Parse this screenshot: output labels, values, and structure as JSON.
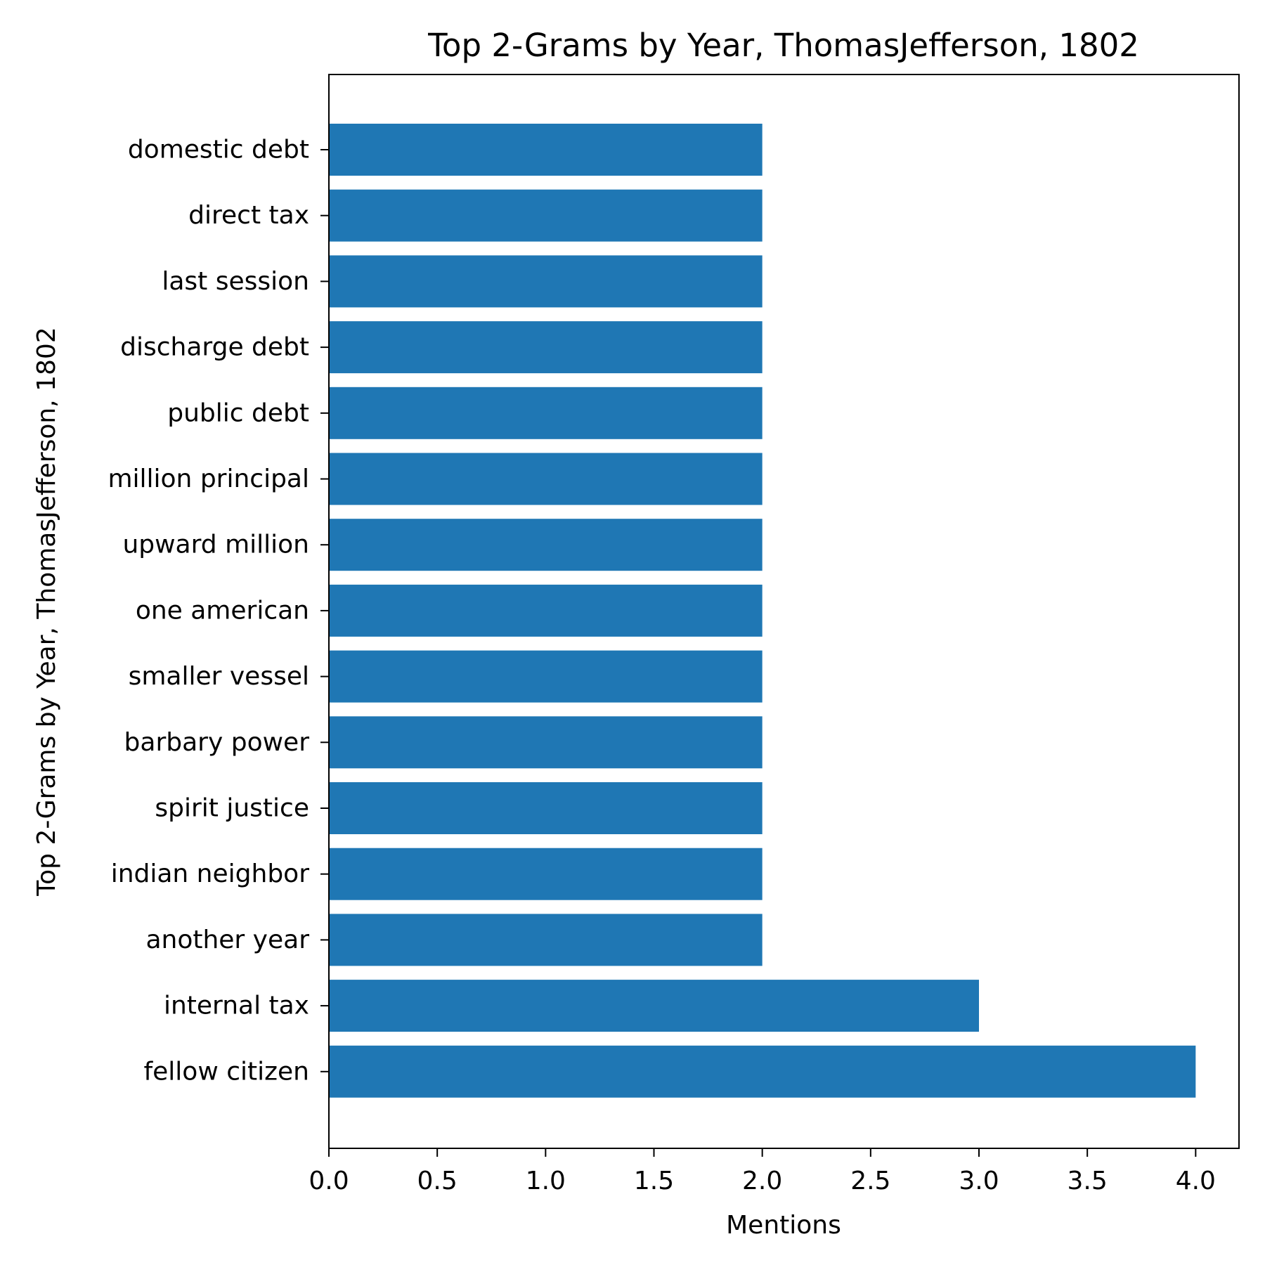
{
  "chart_data": {
    "type": "bar",
    "orientation": "horizontal",
    "title": "Top 2-Grams by Year, ThomasJefferson, 1802",
    "xlabel": "Mentions",
    "ylabel": "Top 2-Grams by Year, ThomasJefferson, 1802",
    "categories": [
      "domestic debt",
      "direct tax",
      "last session",
      "discharge debt",
      "public debt",
      "million principal",
      "upward million",
      "one american",
      "smaller vessel",
      "barbary power",
      "spirit justice",
      "indian neighbor",
      "another year",
      "internal tax",
      "fellow citizen"
    ],
    "values": [
      2,
      2,
      2,
      2,
      2,
      2,
      2,
      2,
      2,
      2,
      2,
      2,
      2,
      3,
      4
    ],
    "xlim": [
      0,
      4.2
    ],
    "xticks": [
      "0.0",
      "0.5",
      "1.0",
      "1.5",
      "2.0",
      "2.5",
      "3.0",
      "3.5",
      "4.0"
    ],
    "bar_color": "#1f77b4",
    "grid": false,
    "legend": "none"
  }
}
